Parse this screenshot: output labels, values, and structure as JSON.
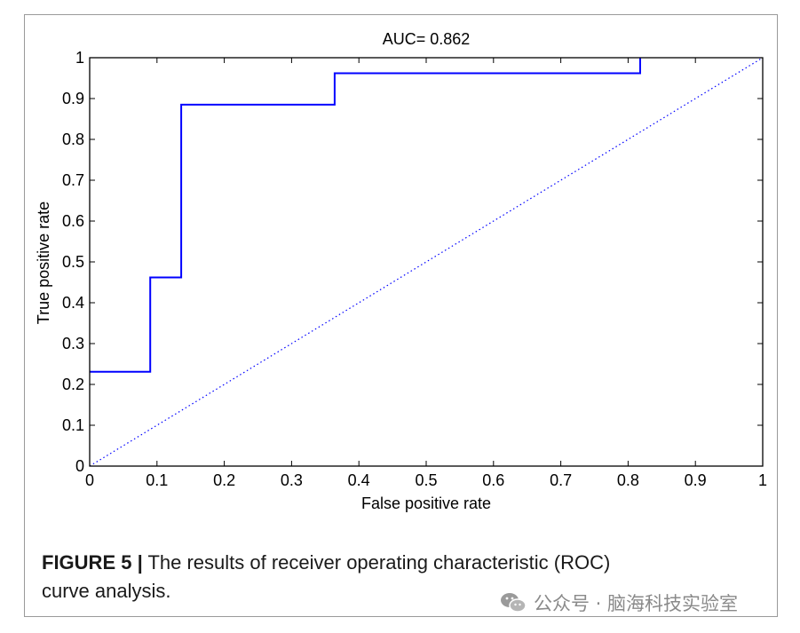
{
  "chart_data": {
    "type": "line",
    "title": "AUC= 0.862",
    "xlabel": "False positive rate",
    "ylabel": "True positive rate",
    "xlim": [
      0,
      1
    ],
    "ylim": [
      0,
      1
    ],
    "xticks": [
      "0",
      "0.1",
      "0.2",
      "0.3",
      "0.4",
      "0.5",
      "0.6",
      "0.7",
      "0.8",
      "0.9",
      "1"
    ],
    "yticks": [
      "0",
      "0.1",
      "0.2",
      "0.3",
      "0.4",
      "0.5",
      "0.6",
      "0.7",
      "0.8",
      "0.9",
      "1"
    ],
    "grid": false,
    "series": [
      {
        "style": "step",
        "color": "#0000ff",
        "x": [
          0,
          0.09,
          0.09,
          0.136,
          0.136,
          0.364,
          0.364,
          0.818,
          0.818
        ],
        "y": [
          0.231,
          0.231,
          0.462,
          0.462,
          0.885,
          0.885,
          0.962,
          0.962,
          1.0
        ]
      },
      {
        "style": "dotted",
        "color": "#0000ff",
        "x": [
          0,
          1
        ],
        "y": [
          0,
          1
        ]
      }
    ]
  },
  "caption": {
    "label": "FIGURE 5 |",
    "text": " The results of receiver operating characteristic (ROC) curve analysis."
  },
  "watermark": {
    "text": "公众号 · 脑海科技实验室",
    "icon": "wechat-icon"
  }
}
